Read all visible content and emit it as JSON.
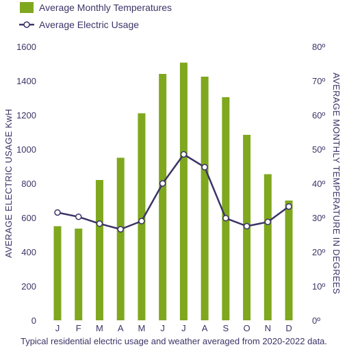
{
  "chart_data": {
    "type": "bar",
    "caption": "Typical residential electric usage and weather averaged from 2020-2022 data.",
    "categories": [
      "J",
      "F",
      "M",
      "A",
      "M",
      "J",
      "J",
      "A",
      "S",
      "O",
      "N",
      "D"
    ],
    "series": [
      {
        "name": "Average Monthly Temperatures",
        "type": "bar",
        "axis": "right",
        "color": "#7fa81f",
        "values": [
          27.5,
          26.8,
          41,
          47.5,
          60.5,
          72,
          75.3,
          71.2,
          65.2,
          54.2,
          42.7,
          35
        ]
      },
      {
        "name": "Average Electric Usage",
        "type": "line",
        "axis": "left",
        "color": "#3b3366",
        "values": [
          630,
          605,
          565,
          532,
          580,
          800,
          970,
          895,
          597,
          550,
          575,
          665
        ]
      }
    ],
    "left_axis": {
      "label": "AVERAGE ELECTRIC USAGE KwH",
      "range": [
        0,
        1600
      ],
      "ticks": [
        "0",
        "200",
        "400",
        "600",
        "800",
        "1000",
        "1200",
        "1400",
        "1600"
      ]
    },
    "right_axis": {
      "label": "AVERAGE MONTHLY TEMPERATURE IN DEGREES",
      "range": [
        0,
        80
      ],
      "ticks": [
        "0º",
        "10º",
        "20º",
        "30º",
        "40º",
        "50º",
        "60º",
        "70º",
        "80º"
      ]
    },
    "grid": false,
    "legend_position": "top-left"
  }
}
